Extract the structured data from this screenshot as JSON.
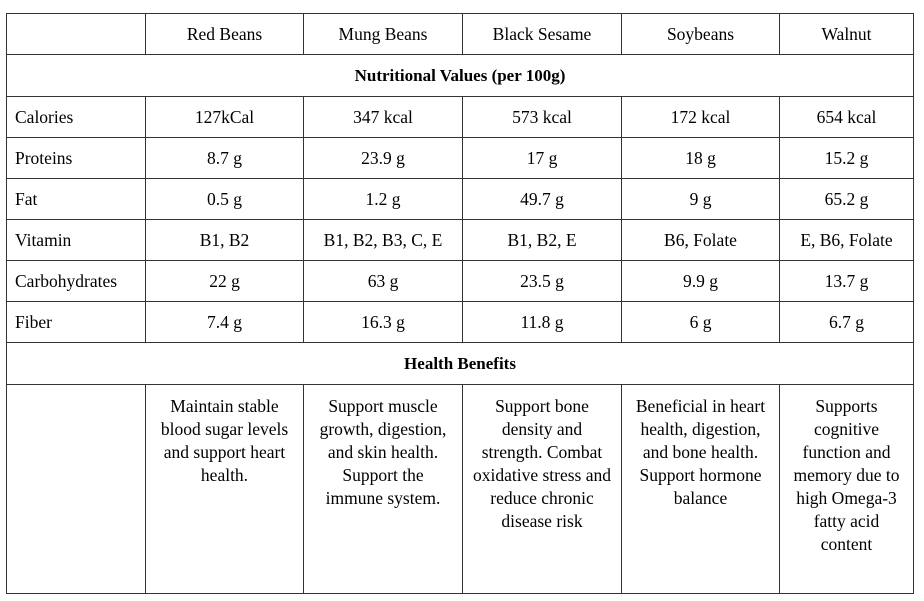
{
  "columns": [
    "",
    "Red Beans",
    "Mung Beans",
    "Black Sesame",
    "Soybeans",
    "Walnut"
  ],
  "sections": {
    "nutrition_title": "Nutritional Values (per 100g)",
    "benefits_title": "Health Benefits"
  },
  "rows": [
    {
      "label": "Calories",
      "values": [
        "127kCal",
        "347 kcal",
        "573 kcal",
        "172 kcal",
        "654 kcal"
      ]
    },
    {
      "label": "Proteins",
      "values": [
        "8.7 g",
        "23.9 g",
        "17 g",
        "18 g",
        "15.2 g"
      ]
    },
    {
      "label": "Fat",
      "values": [
        "0.5 g",
        "1.2 g",
        "49.7 g",
        "9 g",
        "65.2 g"
      ]
    },
    {
      "label": "Vitamin",
      "values": [
        "B1, B2",
        "B1, B2, B3, C, E",
        "B1, B2, E",
        "B6, Folate",
        "E, B6, Folate"
      ]
    },
    {
      "label": "Carbohydrates",
      "values": [
        "22 g",
        "63 g",
        "23.5 g",
        "9.9 g",
        "13.7 g"
      ]
    },
    {
      "label": "Fiber",
      "values": [
        "7.4 g",
        "16.3 g",
        "11.8 g",
        "6 g",
        "6.7 g"
      ]
    }
  ],
  "benefits": {
    "label": "",
    "values": [
      "Maintain stable blood sugar levels and support heart health.",
      "Support muscle growth, digestion, and skin health. Support the immune system.",
      "Support bone density and strength. Combat oxidative stress and reduce chronic disease risk",
      "Beneficial in heart health, digestion, and bone health. Support hormone balance",
      "Supports cognitive function and memory due to high Omega-3 fatty acid content"
    ]
  }
}
